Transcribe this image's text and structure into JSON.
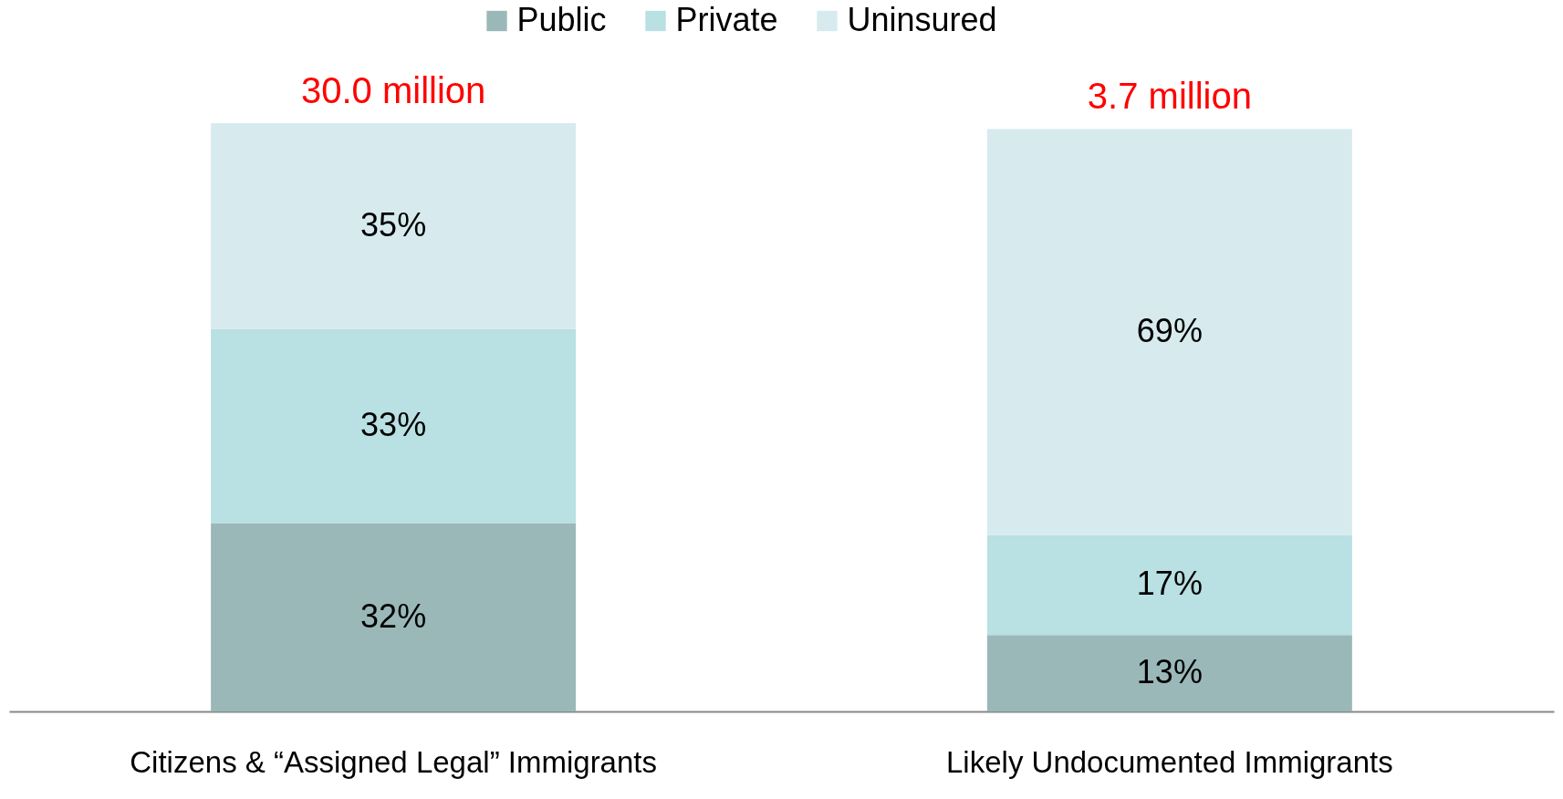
{
  "chart_data": {
    "type": "bar",
    "stacked": true,
    "categories": [
      "Citizens & “Assigned Legal” Immigrants",
      "Likely Undocumented Immigrants"
    ],
    "series": [
      {
        "name": "Public",
        "color": "#9bb8b9",
        "values": [
          32,
          13
        ],
        "value_labels": [
          "32%",
          "13%"
        ]
      },
      {
        "name": "Private",
        "color": "#b9e0e3",
        "values": [
          33,
          17
        ],
        "value_labels": [
          "33%",
          "17%"
        ]
      },
      {
        "name": "Uninsured",
        "color": "#d7ebee",
        "values": [
          35,
          69
        ],
        "value_labels": [
          "35%",
          "69%"
        ]
      }
    ],
    "annotations": [
      {
        "text": "30.0 million",
        "x": "Citizens & “Assigned Legal” Immigrants",
        "y": 100
      },
      {
        "text": "3.7 million",
        "x": "Likely Undocumented Immigrants",
        "y": 99
      }
    ],
    "ylim": [
      0,
      100
    ],
    "tick_labels": "x",
    "legend": "top"
  }
}
